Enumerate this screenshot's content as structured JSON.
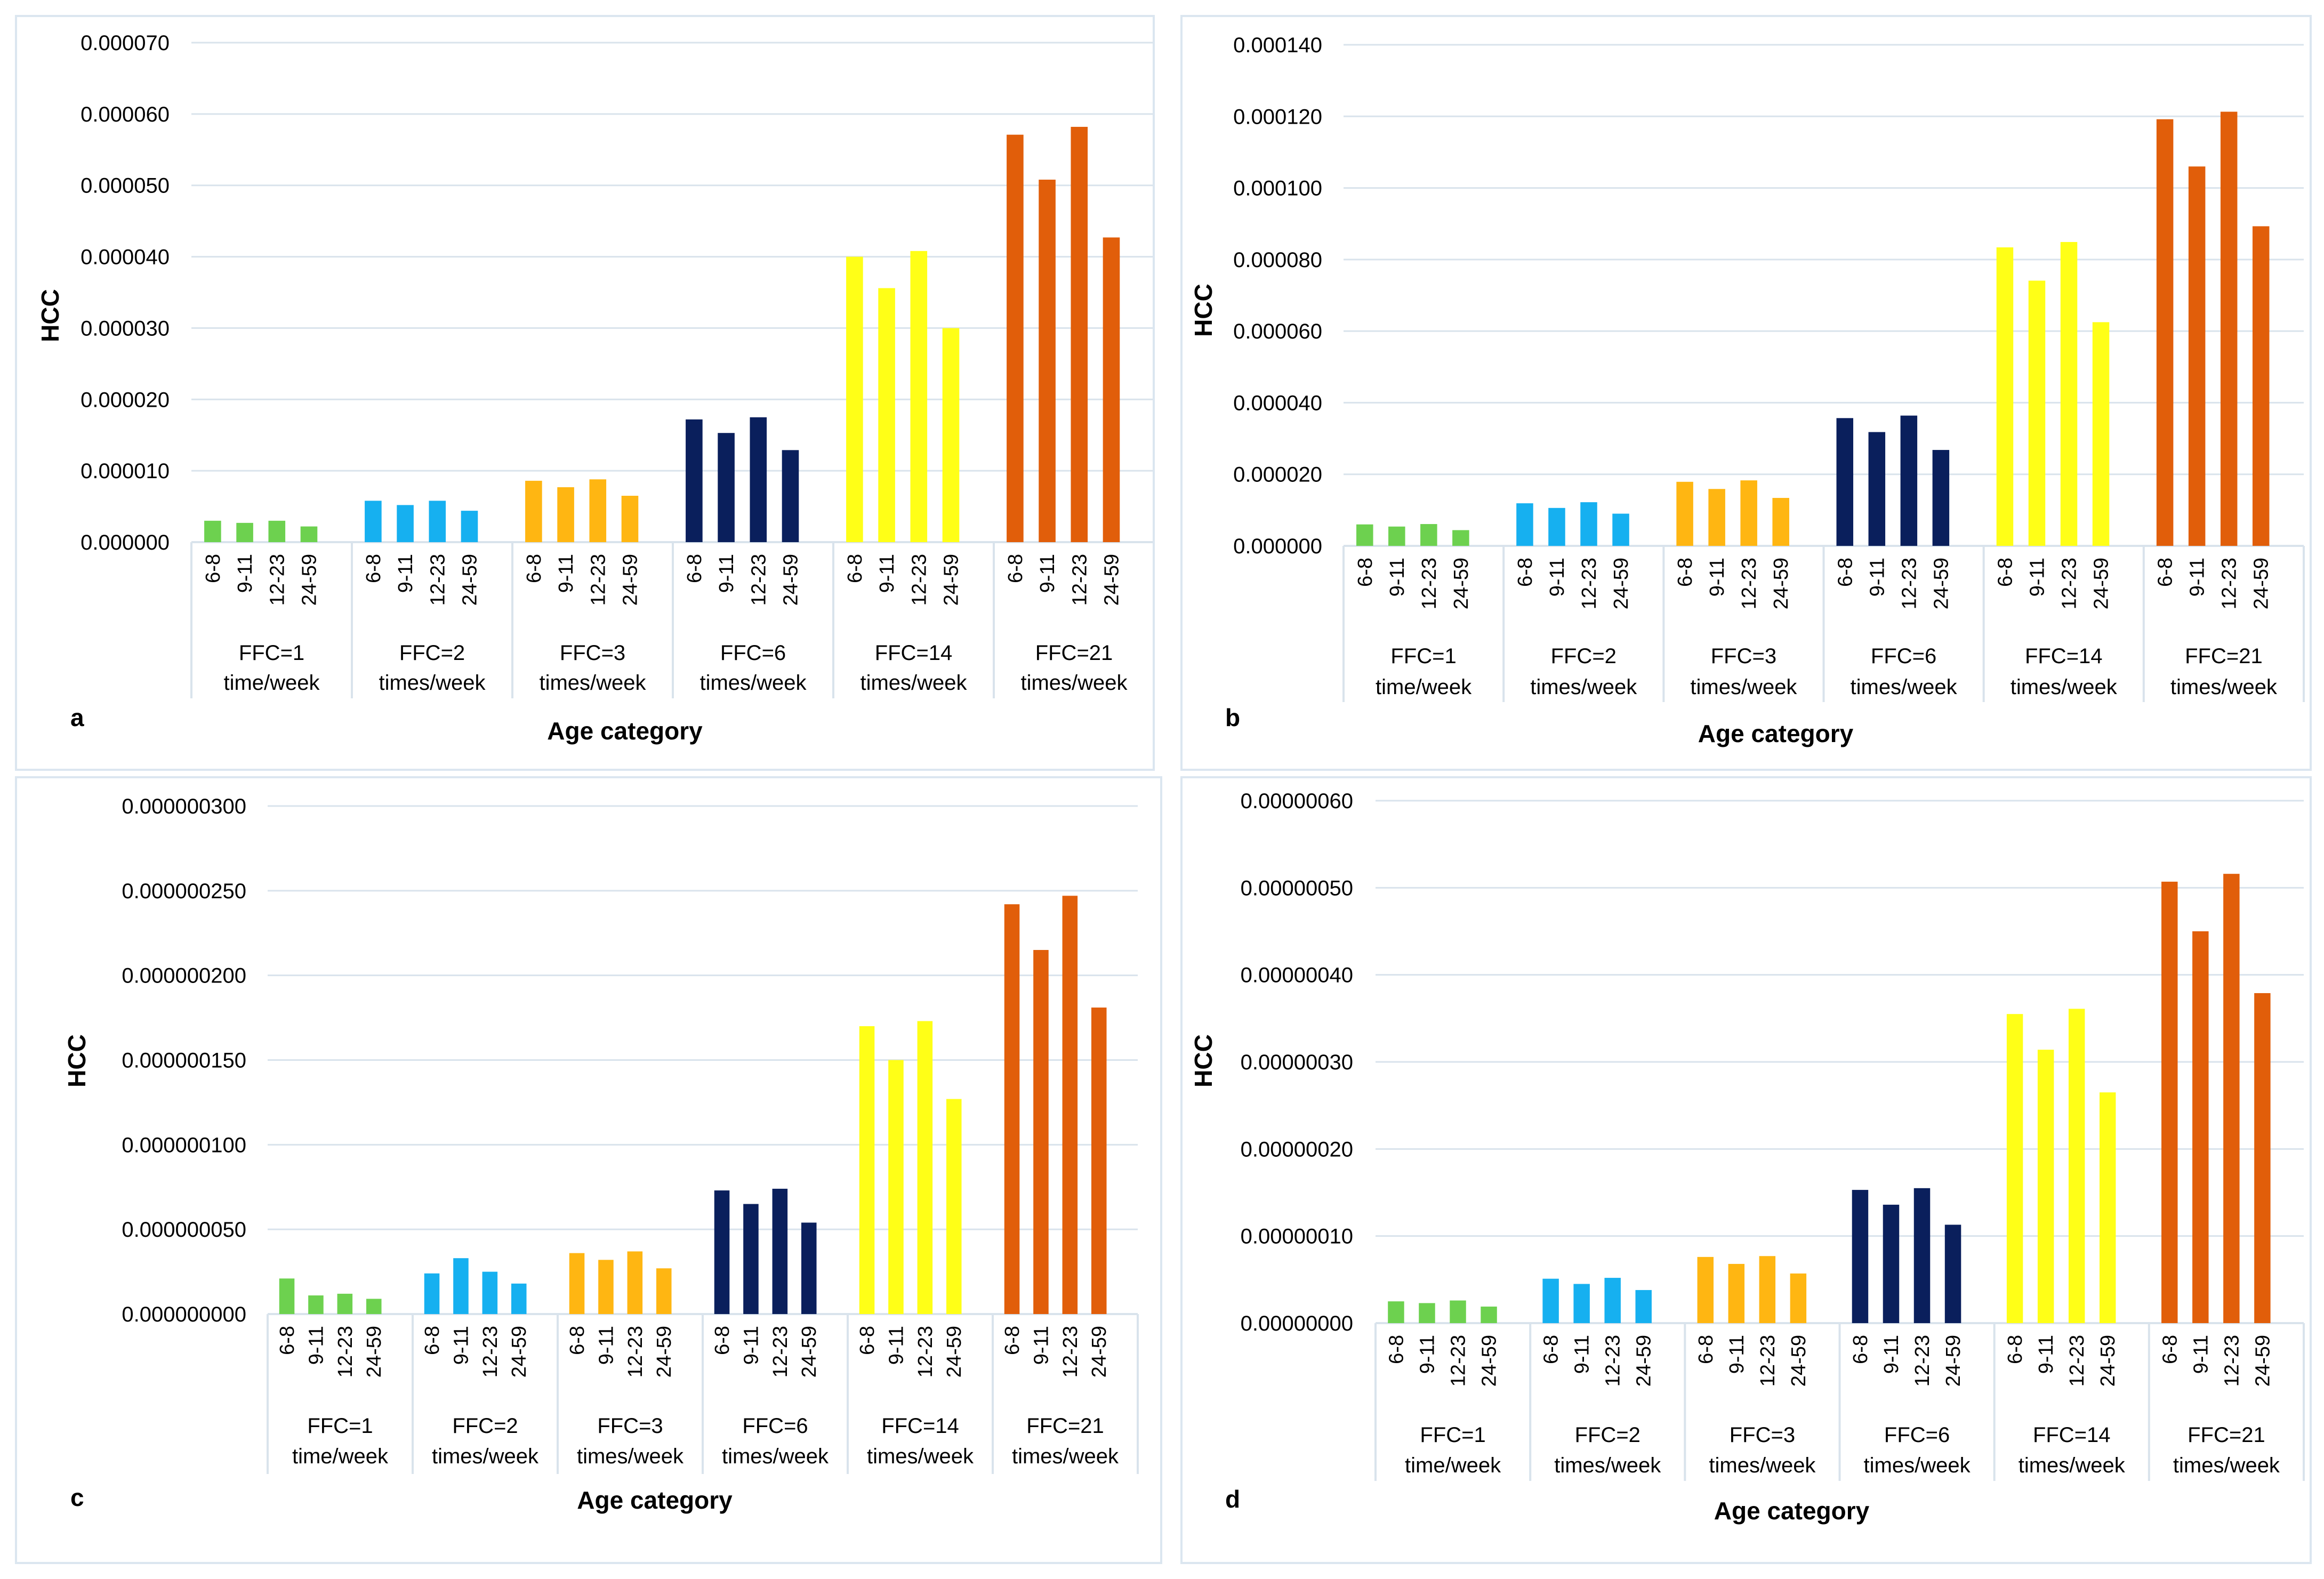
{
  "colors": {
    "ffc1": "#6dd14f",
    "ffc2": "#16b0f0",
    "ffc3": "#ffb612",
    "ffc6": "#0a1f5c",
    "ffc14": "#ffff17",
    "ffc21": "#e15e0a",
    "gridline": "#d9e3ec",
    "axis": "#d9e3ec"
  },
  "chart_data": [
    {
      "type": "bar",
      "panel_label": "a",
      "ylabel": "HCC",
      "xlabel": "Age category",
      "ylim": [
        0,
        7e-05
      ],
      "ytick_labels": [
        "0.000000",
        "0.000010",
        "0.000020",
        "0.000030",
        "0.000040",
        "0.000050",
        "0.000060",
        "0.000070"
      ],
      "groups": [
        {
          "line1": "FFC=1",
          "line2": "time/week",
          "color": "ffc1",
          "ages": [
            "6-8",
            "9-11",
            "12-23",
            "24-59"
          ],
          "values": [
            3e-06,
            2.7e-06,
            3e-06,
            2.2e-06
          ]
        },
        {
          "line1": "FFC=2",
          "line2": "times/week",
          "color": "ffc2",
          "ages": [
            "6-8",
            "9-11",
            "12-23",
            "24-59"
          ],
          "values": [
            5.8e-06,
            5.2e-06,
            5.8e-06,
            4.4e-06
          ]
        },
        {
          "line1": "FFC=3",
          "line2": "times/week",
          "color": "ffc3",
          "ages": [
            "6-8",
            "9-11",
            "12-23",
            "24-59"
          ],
          "values": [
            8.6e-06,
            7.7e-06,
            8.8e-06,
            6.5e-06
          ]
        },
        {
          "line1": "FFC=6",
          "line2": "times/week",
          "color": "ffc6",
          "ages": [
            "6-8",
            "9-11",
            "12-23",
            "24-59"
          ],
          "values": [
            1.72e-05,
            1.53e-05,
            1.75e-05,
            1.29e-05
          ]
        },
        {
          "line1": "FFC=14",
          "line2": "times/week",
          "color": "ffc14",
          "ages": [
            "6-8",
            "9-11",
            "12-23",
            "24-59"
          ],
          "values": [
            4e-05,
            3.56e-05,
            4.08e-05,
            3e-05
          ]
        },
        {
          "line1": "FFC=21",
          "line2": "times/week",
          "color": "ffc21",
          "ages": [
            "6-8",
            "9-11",
            "12-23",
            "24-59"
          ],
          "values": [
            5.71e-05,
            5.08e-05,
            5.82e-05,
            4.27e-05
          ]
        }
      ]
    },
    {
      "type": "bar",
      "panel_label": "b",
      "ylabel": "HCC",
      "xlabel": "Age category",
      "ylim": [
        0,
        0.00014
      ],
      "ytick_labels": [
        "0.000000",
        "0.000020",
        "0.000040",
        "0.000060",
        "0.000080",
        "0.000100",
        "0.000120",
        "0.000140"
      ],
      "groups": [
        {
          "line1": "FFC=1",
          "line2": "time/week",
          "color": "ffc1",
          "ages": [
            "6-8",
            "9-11",
            "12-23",
            "24-59"
          ],
          "values": [
            6e-06,
            5.4e-06,
            6.1e-06,
            4.4e-06
          ]
        },
        {
          "line1": "FFC=2",
          "line2": "times/week",
          "color": "ffc2",
          "ages": [
            "6-8",
            "9-11",
            "12-23",
            "24-59"
          ],
          "values": [
            1.19e-05,
            1.06e-05,
            1.22e-05,
            9e-06
          ]
        },
        {
          "line1": "FFC=3",
          "line2": "times/week",
          "color": "ffc3",
          "ages": [
            "6-8",
            "9-11",
            "12-23",
            "24-59"
          ],
          "values": [
            1.79e-05,
            1.59e-05,
            1.83e-05,
            1.34e-05
          ]
        },
        {
          "line1": "FFC=6",
          "line2": "times/week",
          "color": "ffc6",
          "ages": [
            "6-8",
            "9-11",
            "12-23",
            "24-59"
          ],
          "values": [
            3.57e-05,
            3.18e-05,
            3.64e-05,
            2.68e-05
          ]
        },
        {
          "line1": "FFC=14",
          "line2": "times/week",
          "color": "ffc14",
          "ages": [
            "6-8",
            "9-11",
            "12-23",
            "24-59"
          ],
          "values": [
            8.34e-05,
            7.41e-05,
            8.49e-05,
            6.25e-05
          ]
        },
        {
          "line1": "FFC=21",
          "line2": "times/week",
          "color": "ffc21",
          "ages": [
            "6-8",
            "9-11",
            "12-23",
            "24-59"
          ],
          "values": [
            0.0001192,
            0.000106,
            0.0001213,
            8.93e-05
          ]
        }
      ]
    },
    {
      "type": "bar",
      "panel_label": "c",
      "ylabel": "HCC",
      "xlabel": "Age category",
      "ylim": [
        0,
        3e-07
      ],
      "ytick_labels": [
        "0.000000000",
        "0.000000050",
        "0.000000100",
        "0.000000150",
        "0.000000200",
        "0.000000250",
        "0.000000300"
      ],
      "groups": [
        {
          "line1": "FFC=1",
          "line2": "time/week",
          "color": "ffc1",
          "ages": [
            "6-8",
            "9-11",
            "12-23",
            "24-59"
          ],
          "values": [
            2.1e-08,
            1.1e-08,
            1.2e-08,
            9e-09
          ]
        },
        {
          "line1": "FFC=2",
          "line2": "times/week",
          "color": "ffc2",
          "ages": [
            "6-8",
            "9-11",
            "12-23",
            "24-59"
          ],
          "values": [
            2.4e-08,
            3.3e-08,
            2.5e-08,
            1.8e-08
          ]
        },
        {
          "line1": "FFC=3",
          "line2": "times/week",
          "color": "ffc3",
          "ages": [
            "6-8",
            "9-11",
            "12-23",
            "24-59"
          ],
          "values": [
            3.6e-08,
            3.2e-08,
            3.7e-08,
            2.7e-08
          ]
        },
        {
          "line1": "FFC=6",
          "line2": "times/week",
          "color": "ffc6",
          "ages": [
            "6-8",
            "9-11",
            "12-23",
            "24-59"
          ],
          "values": [
            7.3e-08,
            6.5e-08,
            7.4e-08,
            5.4e-08
          ]
        },
        {
          "line1": "FFC=14",
          "line2": "times/week",
          "color": "ffc14",
          "ages": [
            "6-8",
            "9-11",
            "12-23",
            "24-59"
          ],
          "values": [
            1.7e-07,
            1.5e-07,
            1.73e-07,
            1.27e-07
          ]
        },
        {
          "line1": "FFC=21",
          "line2": "times/week",
          "color": "ffc21",
          "ages": [
            "6-8",
            "9-11",
            "12-23",
            "24-59"
          ],
          "values": [
            2.42e-07,
            2.15e-07,
            2.47e-07,
            1.81e-07
          ]
        }
      ]
    },
    {
      "type": "bar",
      "panel_label": "d",
      "ylabel": "HCC",
      "xlabel": "Age category",
      "ylim": [
        0,
        6e-07
      ],
      "ytick_labels": [
        "0.00000000",
        "0.00000010",
        "0.00000020",
        "0.00000030",
        "0.00000040",
        "0.00000050",
        "0.00000060"
      ],
      "groups": [
        {
          "line1": "FFC=1",
          "line2": "time/week",
          "color": "ffc1",
          "ages": [
            "6-8",
            "9-11",
            "12-23",
            "24-59"
          ],
          "values": [
            2.5e-08,
            2.3e-08,
            2.6e-08,
            1.9e-08
          ]
        },
        {
          "line1": "FFC=2",
          "line2": "times/week",
          "color": "ffc2",
          "ages": [
            "6-8",
            "9-11",
            "12-23",
            "24-59"
          ],
          "values": [
            5.1e-08,
            4.5e-08,
            5.2e-08,
            3.8e-08
          ]
        },
        {
          "line1": "FFC=3",
          "line2": "times/week",
          "color": "ffc3",
          "ages": [
            "6-8",
            "9-11",
            "12-23",
            "24-59"
          ],
          "values": [
            7.6e-08,
            6.8e-08,
            7.7e-08,
            5.7e-08
          ]
        },
        {
          "line1": "FFC=6",
          "line2": "times/week",
          "color": "ffc6",
          "ages": [
            "6-8",
            "9-11",
            "12-23",
            "24-59"
          ],
          "values": [
            1.53e-07,
            1.36e-07,
            1.55e-07,
            1.13e-07
          ]
        },
        {
          "line1": "FFC=14",
          "line2": "times/week",
          "color": "ffc14",
          "ages": [
            "6-8",
            "9-11",
            "12-23",
            "24-59"
          ],
          "values": [
            3.55e-07,
            3.14e-07,
            3.61e-07,
            2.65e-07
          ]
        },
        {
          "line1": "FFC=21",
          "line2": "times/week",
          "color": "ffc21",
          "ages": [
            "6-8",
            "9-11",
            "12-23",
            "24-59"
          ],
          "values": [
            5.07e-07,
            4.5e-07,
            5.16e-07,
            3.79e-07
          ]
        }
      ]
    }
  ]
}
